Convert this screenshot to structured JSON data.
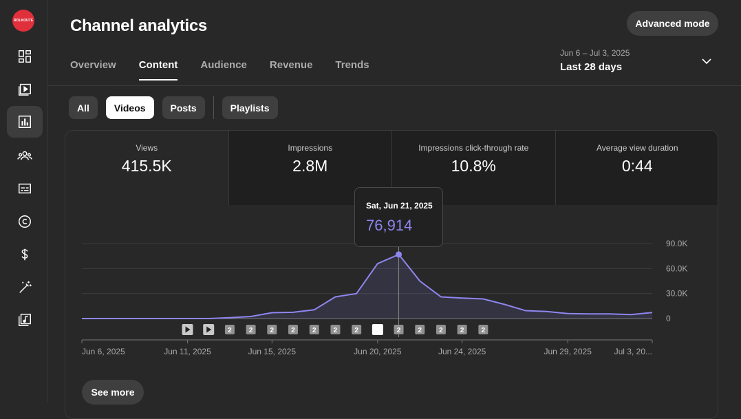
{
  "app": {
    "logo_text": "ROLKOUTE",
    "title": "Channel analytics",
    "advanced_mode_label": "Advanced mode"
  },
  "sidebar": {
    "items": [
      {
        "name": "dashboard-icon",
        "active": false
      },
      {
        "name": "content-icon",
        "active": false
      },
      {
        "name": "analytics-icon",
        "active": true
      },
      {
        "name": "community-icon",
        "active": false
      },
      {
        "name": "subtitles-icon",
        "active": false
      },
      {
        "name": "copyright-icon",
        "active": false
      },
      {
        "name": "earn-icon",
        "active": false
      },
      {
        "name": "customization-icon",
        "active": false
      },
      {
        "name": "audio-library-icon",
        "active": false
      }
    ]
  },
  "tabs": [
    {
      "label": "Overview",
      "active": false
    },
    {
      "label": "Content",
      "active": true
    },
    {
      "label": "Audience",
      "active": false
    },
    {
      "label": "Revenue",
      "active": false
    },
    {
      "label": "Trends",
      "active": false
    }
  ],
  "date_range": {
    "dates": "Jun 6 – Jul 3, 2025",
    "label": "Last 28 days"
  },
  "chips": [
    {
      "label": "All",
      "active": false
    },
    {
      "label": "Videos",
      "active": true
    },
    {
      "label": "Posts",
      "active": false
    },
    {
      "label": "Playlists",
      "active": false
    }
  ],
  "metrics": [
    {
      "label": "Views",
      "value": "415.5K"
    },
    {
      "label": "Impressions",
      "value": "2.8M"
    },
    {
      "label": "Impressions click-through rate",
      "value": "10.8%"
    },
    {
      "label": "Average view duration",
      "value": "0:44"
    }
  ],
  "tooltip": {
    "date": "Sat, Jun 21, 2025",
    "value": "76,914"
  },
  "see_more_label": "See more",
  "colors": {
    "accent": "#8e86f0",
    "background": "#282828"
  },
  "chart_data": {
    "type": "area",
    "series": [
      {
        "values": [
          0,
          0,
          0,
          0,
          0,
          0,
          0,
          1000,
          2500,
          7000,
          7500,
          10500,
          26000,
          30000,
          66000,
          76914,
          45000,
          26000,
          24500,
          23500,
          17000,
          9500,
          8500,
          6000,
          5500,
          5500,
          4800,
          7200
        ]
      }
    ],
    "x": [
      "Jun 6",
      "Jun 7",
      "Jun 8",
      "Jun 9",
      "Jun 10",
      "Jun 11",
      "Jun 12",
      "Jun 13",
      "Jun 14",
      "Jun 15",
      "Jun 16",
      "Jun 17",
      "Jun 18",
      "Jun 19",
      "Jun 20",
      "Jun 21",
      "Jun 22",
      "Jun 23",
      "Jun 24",
      "Jun 25",
      "Jun 26",
      "Jun 27",
      "Jun 28",
      "Jun 29",
      "Jun 30",
      "Jul 1",
      "Jul 2",
      "Jul 3"
    ],
    "x_tick_labels": [
      {
        "index": 0,
        "label": "Jun 6, 2025"
      },
      {
        "index": 5,
        "label": "Jun 11, 2025"
      },
      {
        "index": 9,
        "label": "Jun 15, 2025"
      },
      {
        "index": 14,
        "label": "Jun 20, 2025"
      },
      {
        "index": 18,
        "label": "Jun 24, 2025"
      },
      {
        "index": 23,
        "label": "Jun 29, 2025"
      },
      {
        "index": 27,
        "label": "Jul 3, 20..."
      }
    ],
    "y_ticks": [
      {
        "value": 90000,
        "label": "90.0K"
      },
      {
        "value": 60000,
        "label": "60.0K"
      },
      {
        "value": 30000,
        "label": "30.0K"
      },
      {
        "value": 0,
        "label": "0"
      }
    ],
    "ylim": [
      0,
      90000
    ],
    "highlight_index": 15,
    "markers": [
      {
        "index": 5,
        "kind": "play",
        "label": ""
      },
      {
        "index": 6,
        "kind": "play",
        "label": ""
      },
      {
        "index": 7,
        "kind": "count",
        "label": "2"
      },
      {
        "index": 8,
        "kind": "count",
        "label": "2"
      },
      {
        "index": 9,
        "kind": "count",
        "label": "2"
      },
      {
        "index": 10,
        "kind": "count",
        "label": "2"
      },
      {
        "index": 11,
        "kind": "count",
        "label": "2"
      },
      {
        "index": 12,
        "kind": "count",
        "label": "2"
      },
      {
        "index": 13,
        "kind": "count",
        "label": "2"
      },
      {
        "index": 14,
        "kind": "selected",
        "label": ""
      },
      {
        "index": 15,
        "kind": "count",
        "label": "2"
      },
      {
        "index": 16,
        "kind": "count",
        "label": "2"
      },
      {
        "index": 17,
        "kind": "count",
        "label": "2"
      },
      {
        "index": 18,
        "kind": "count",
        "label": "2"
      },
      {
        "index": 19,
        "kind": "count",
        "label": "2"
      }
    ]
  }
}
